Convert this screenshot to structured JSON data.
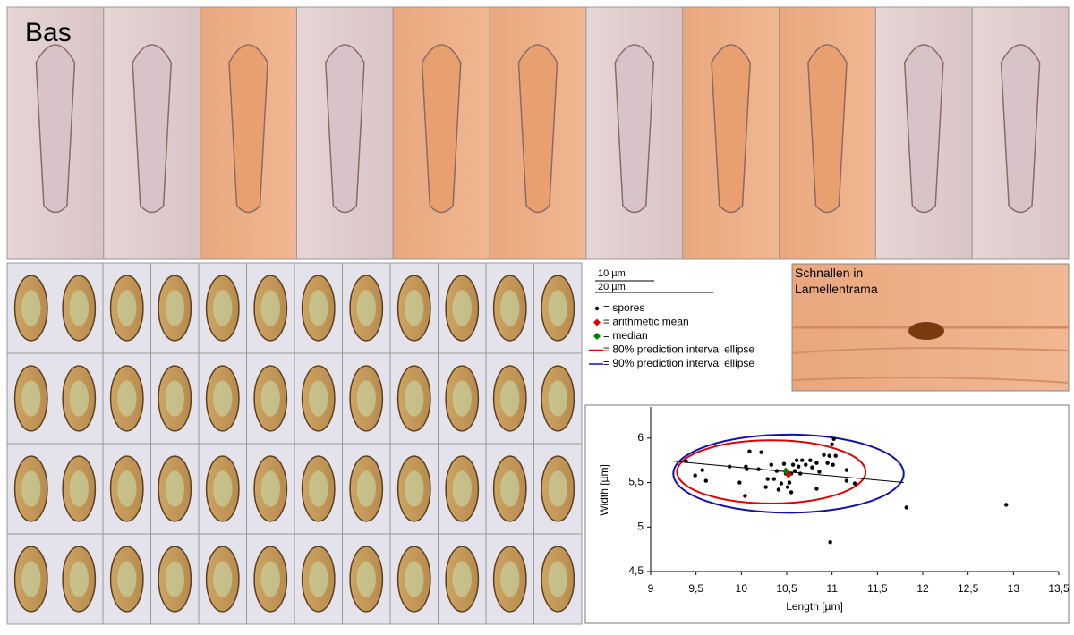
{
  "labels": {
    "panel_title": "Bas",
    "scale_short": "10 µm",
    "scale_long": "20 µm",
    "clamp_title": "Schnallen in Lamellentrama"
  },
  "chart_data": {
    "type": "scatter",
    "xlabel": "Length [µm]",
    "ylabel": "Width [µm]",
    "xlim": [
      9,
      13.5
    ],
    "ylim": [
      4.5,
      6.35
    ],
    "xticks": [
      9,
      {
        "value": 9.5,
        "label": "9,5"
      },
      10,
      {
        "value": 10.5,
        "label": "10,5"
      },
      11,
      {
        "value": 11.5,
        "label": "11,5"
      },
      12,
      {
        "value": 12.5,
        "label": "12,5"
      },
      13,
      {
        "value": 13.5,
        "label": "13,5"
      }
    ],
    "yticks": [
      {
        "value": 4.5,
        "label": "4,5"
      },
      5,
      {
        "value": 5.5,
        "label": "5,5"
      },
      6
    ],
    "series": [
      {
        "name": "= spores",
        "color": "#000000",
        "x": [
          9.39,
          9.49,
          9.57,
          9.61,
          9.87,
          9.98,
          10.04,
          10.05,
          10.06,
          10.09,
          10.19,
          10.22,
          10.27,
          10.29,
          10.33,
          10.36,
          10.39,
          10.41,
          10.44,
          10.47,
          10.49,
          10.51,
          10.53,
          10.55,
          10.55,
          10.57,
          10.59,
          10.61,
          10.63,
          10.65,
          10.67,
          10.71,
          10.76,
          10.78,
          10.83,
          10.86,
          10.91,
          10.95,
          10.97,
          10.83,
          11.01,
          11.04,
          11.0,
          11.02,
          10.98,
          11.16,
          11.16,
          11.25,
          11.82,
          12.92
        ],
        "values": [
          5.74,
          5.58,
          5.64,
          5.52,
          5.68,
          5.5,
          5.35,
          5.68,
          5.65,
          5.85,
          5.65,
          5.84,
          5.45,
          5.54,
          5.7,
          5.54,
          5.63,
          5.42,
          5.49,
          5.71,
          5.6,
          5.45,
          5.5,
          5.6,
          5.39,
          5.7,
          5.63,
          5.75,
          5.68,
          5.6,
          5.75,
          5.7,
          5.75,
          5.67,
          5.72,
          5.62,
          5.81,
          5.72,
          5.8,
          5.43,
          5.7,
          5.8,
          5.93,
          5.99,
          4.83,
          5.64,
          5.52,
          5.49,
          5.22,
          5.25
        ]
      },
      {
        "name": "= arithmetic mean",
        "color": "#e00000",
        "x": [
          10.52
        ],
        "values": [
          5.59
        ]
      },
      {
        "name": "= median",
        "color": "#008000",
        "x": [
          10.49
        ],
        "values": [
          5.63
        ]
      }
    ],
    "ellipses": [
      {
        "name": "= 80% prediction interval ellipse",
        "color": "#e00000",
        "cx": 10.33,
        "cy": 5.62,
        "rx": 1.04,
        "ry": 0.355
      },
      {
        "name": "= 90% prediction interval ellipse",
        "color": "#1010b0",
        "cx": 10.52,
        "cy": 5.6,
        "rx": 1.27,
        "ry": 0.44
      }
    ],
    "trend": {
      "x": [
        9.25,
        11.79
      ],
      "values": [
        5.74,
        5.5
      ]
    }
  }
}
